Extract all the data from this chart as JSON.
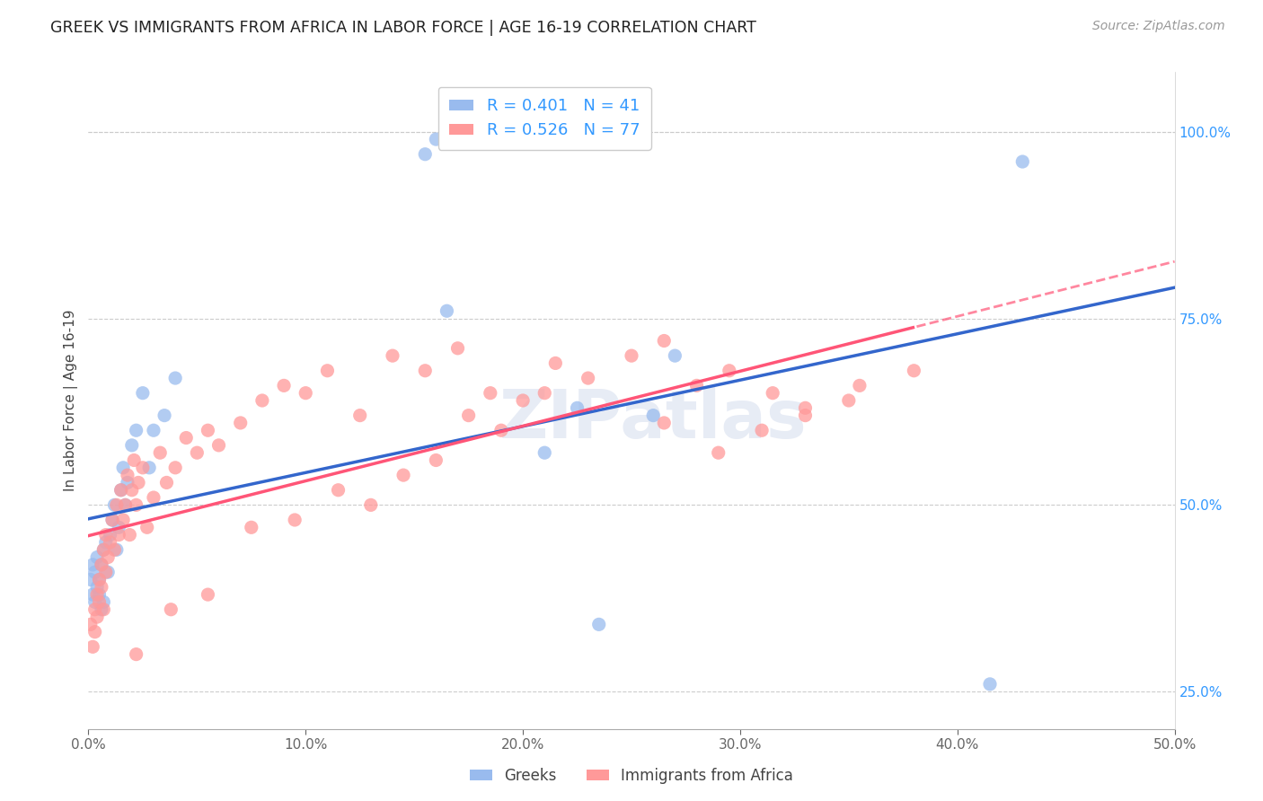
{
  "title": "GREEK VS IMMIGRANTS FROM AFRICA IN LABOR FORCE | AGE 16-19 CORRELATION CHART",
  "source_text": "Source: ZipAtlas.com",
  "ylabel": "In Labor Force | Age 16-19",
  "xlim": [
    0.0,
    0.5
  ],
  "ylim": [
    0.2,
    1.08
  ],
  "xticks": [
    0.0,
    0.1,
    0.2,
    0.3,
    0.4,
    0.5
  ],
  "xticklabels": [
    "0.0%",
    "10.0%",
    "20.0%",
    "30.0%",
    "40.0%",
    "50.0%"
  ],
  "yticks_right": [
    0.25,
    0.5,
    0.75,
    1.0
  ],
  "yticklabels_right": [
    "25.0%",
    "50.0%",
    "75.0%",
    "100.0%"
  ],
  "color_blue": "#99BBEE",
  "color_pink": "#FF9999",
  "color_blue_line": "#3366CC",
  "color_pink_line": "#FF5577",
  "color_blue_text": "#3399FF",
  "watermark": "ZIPatlas",
  "greek_x": [
    0.001,
    0.002,
    0.002,
    0.003,
    0.003,
    0.004,
    0.004,
    0.005,
    0.005,
    0.006,
    0.006,
    0.007,
    0.007,
    0.008,
    0.009,
    0.01,
    0.011,
    0.012,
    0.013,
    0.014,
    0.015,
    0.016,
    0.017,
    0.018,
    0.02,
    0.022,
    0.025,
    0.028,
    0.03,
    0.035,
    0.04,
    0.155,
    0.16,
    0.165,
    0.21,
    0.225,
    0.235,
    0.26,
    0.27,
    0.415,
    0.43
  ],
  "greek_y": [
    0.4,
    0.38,
    0.42,
    0.37,
    0.41,
    0.39,
    0.43,
    0.38,
    0.4,
    0.36,
    0.42,
    0.44,
    0.37,
    0.45,
    0.41,
    0.46,
    0.48,
    0.5,
    0.44,
    0.47,
    0.52,
    0.55,
    0.5,
    0.53,
    0.58,
    0.6,
    0.65,
    0.55,
    0.6,
    0.62,
    0.67,
    0.97,
    0.99,
    0.76,
    0.57,
    0.63,
    0.34,
    0.62,
    0.7,
    0.26,
    0.96
  ],
  "africa_x": [
    0.001,
    0.002,
    0.003,
    0.003,
    0.004,
    0.004,
    0.005,
    0.005,
    0.006,
    0.006,
    0.007,
    0.007,
    0.008,
    0.008,
    0.009,
    0.01,
    0.011,
    0.012,
    0.013,
    0.014,
    0.015,
    0.016,
    0.017,
    0.018,
    0.019,
    0.02,
    0.021,
    0.022,
    0.023,
    0.025,
    0.027,
    0.03,
    0.033,
    0.036,
    0.04,
    0.045,
    0.05,
    0.055,
    0.06,
    0.07,
    0.08,
    0.09,
    0.1,
    0.11,
    0.125,
    0.14,
    0.155,
    0.17,
    0.185,
    0.2,
    0.215,
    0.23,
    0.25,
    0.265,
    0.28,
    0.295,
    0.315,
    0.33,
    0.355,
    0.38,
    0.265,
    0.29,
    0.31,
    0.33,
    0.35,
    0.21,
    0.19,
    0.175,
    0.16,
    0.145,
    0.13,
    0.115,
    0.095,
    0.075,
    0.055,
    0.038,
    0.022
  ],
  "africa_y": [
    0.34,
    0.31,
    0.36,
    0.33,
    0.38,
    0.35,
    0.4,
    0.37,
    0.42,
    0.39,
    0.36,
    0.44,
    0.41,
    0.46,
    0.43,
    0.45,
    0.48,
    0.44,
    0.5,
    0.46,
    0.52,
    0.48,
    0.5,
    0.54,
    0.46,
    0.52,
    0.56,
    0.5,
    0.53,
    0.55,
    0.47,
    0.51,
    0.57,
    0.53,
    0.55,
    0.59,
    0.57,
    0.6,
    0.58,
    0.61,
    0.64,
    0.66,
    0.65,
    0.68,
    0.62,
    0.7,
    0.68,
    0.71,
    0.65,
    0.64,
    0.69,
    0.67,
    0.7,
    0.72,
    0.66,
    0.68,
    0.65,
    0.63,
    0.66,
    0.68,
    0.61,
    0.57,
    0.6,
    0.62,
    0.64,
    0.65,
    0.6,
    0.62,
    0.56,
    0.54,
    0.5,
    0.52,
    0.48,
    0.47,
    0.38,
    0.36,
    0.3
  ]
}
